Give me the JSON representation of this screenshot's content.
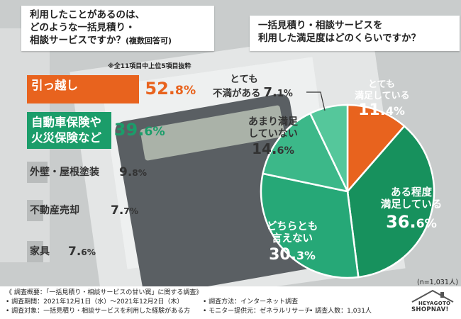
{
  "left_title": {
    "line1": "利用したことがあるのは、",
    "line2": "どのような一括見積り・",
    "line3": "相談サービスですか？",
    "line3_note": "(複数回答可)"
  },
  "left_note": "※全11項目中上位5項目抜粋",
  "right_title": {
    "line1": "一括見積り・相談サービスを",
    "line2": "利用した満足度はどのくらいですか？"
  },
  "sample_note": "(n=1,031人)",
  "chart_data": [
    {
      "type": "bar",
      "orientation": "horizontal",
      "categories": [
        "引っ越し",
        "自動車保険や火災保険など",
        "外壁・屋根塗装",
        "不動産売却",
        "家具"
      ],
      "category_lines": [
        [
          "引っ越し"
        ],
        [
          "自動車保険や",
          "火災保険など"
        ],
        [
          "外壁・屋根塗装"
        ],
        [
          "不動産売却"
        ],
        [
          "家具"
        ]
      ],
      "values": [
        52.8,
        39.6,
        9.8,
        7.7,
        7.6
      ],
      "value_labels": [
        {
          "int": "52.",
          "dec": "8",
          "unit": "%"
        },
        {
          "int": "39.",
          "dec": "6",
          "unit": "%"
        },
        {
          "int": "9.",
          "dec": "8",
          "unit": "%"
        },
        {
          "int": "7.",
          "dec": "7",
          "unit": "%"
        },
        {
          "int": "7.",
          "dec": "6",
          "unit": "%"
        }
      ],
      "unit": "%",
      "colors": [
        "#e8631e",
        "#1b9d6a",
        "#b9bcbc",
        "#b9bcbc",
        "#b9bcbc"
      ]
    },
    {
      "type": "pie",
      "slices": [
        {
          "label_lines": [
            "とても",
            "満足している"
          ],
          "value": 11.4,
          "v_int": "11.",
          "v_dec": "4",
          "color": "#e8631e"
        },
        {
          "label_lines": [
            "ある程度",
            "満足している"
          ],
          "value": 36.6,
          "v_int": "36.",
          "v_dec": "6",
          "color": "#17915d"
        },
        {
          "label_lines": [
            "どちらとも",
            "言えない"
          ],
          "value": 30.3,
          "v_int": "30.",
          "v_dec": "3",
          "color": "#26a877"
        },
        {
          "label_lines": [
            "あまり満足",
            "していない"
          ],
          "value": 14.6,
          "v_int": "14.",
          "v_dec": "6",
          "color": "#3cb889"
        },
        {
          "label_lines": [
            "とても",
            "不満がある"
          ],
          "value": 7.1,
          "v_int": "7.",
          "v_dec": "1",
          "color": "#55c79b"
        }
      ],
      "unit": "%"
    }
  ],
  "footer": {
    "overview": "《 調査概要：「一括見積り・相談サービスの甘い罠」に関する調査》",
    "period": "• 調査期間：2021年12月1日（水）〜2021年12月2日（木）",
    "method": "• 調査方法：インターネット調査",
    "target": "• 調査対象：一括見積り・相談サービスを利用した経験がある方",
    "provider": "• モニター提供元：ゼネラルリサーチ",
    "count": "• 調査人数：1,031人",
    "logo_top": "HEYAGOTO",
    "logo_bottom": "SHOPNAV!"
  }
}
